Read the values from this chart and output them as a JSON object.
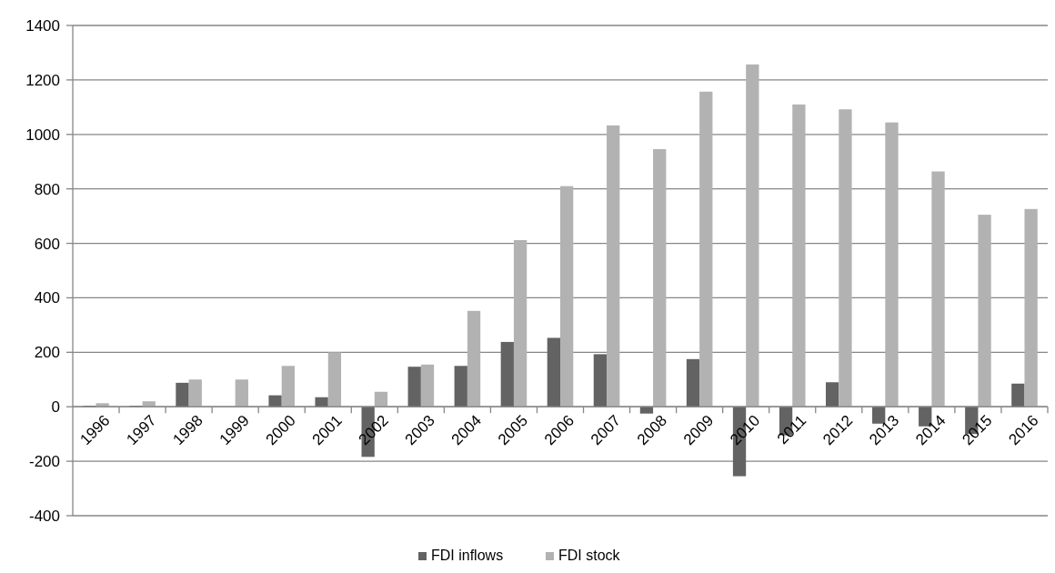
{
  "chart_data": {
    "type": "bar",
    "categories": [
      "1996",
      "1997",
      "1998",
      "1999",
      "2000",
      "2001",
      "2002",
      "2003",
      "2004",
      "2005",
      "2006",
      "2007",
      "2008",
      "2009",
      "2010",
      "2011",
      "2012",
      "2013",
      "2014",
      "2015",
      "2016"
    ],
    "series": [
      {
        "name": "FDI inflows",
        "color": "#636363",
        "values": [
          3,
          3,
          88,
          null,
          42,
          35,
          -184,
          147,
          150,
          238,
          253,
          193,
          -25,
          175,
          -255,
          -105,
          90,
          -62,
          -72,
          -100,
          85
        ]
      },
      {
        "name": "FDI stock",
        "color": "#b2b2b2",
        "values": [
          13,
          20,
          100,
          100,
          150,
          200,
          55,
          155,
          352,
          612,
          810,
          1033,
          946,
          1157,
          1257,
          1110,
          1092,
          1044,
          864,
          705,
          726
        ]
      }
    ],
    "ylim": [
      -400,
      1400
    ],
    "yticks": [
      -400,
      -200,
      0,
      200,
      400,
      600,
      800,
      1000,
      1200,
      1400
    ],
    "grid": "y",
    "legend": "bottom"
  }
}
